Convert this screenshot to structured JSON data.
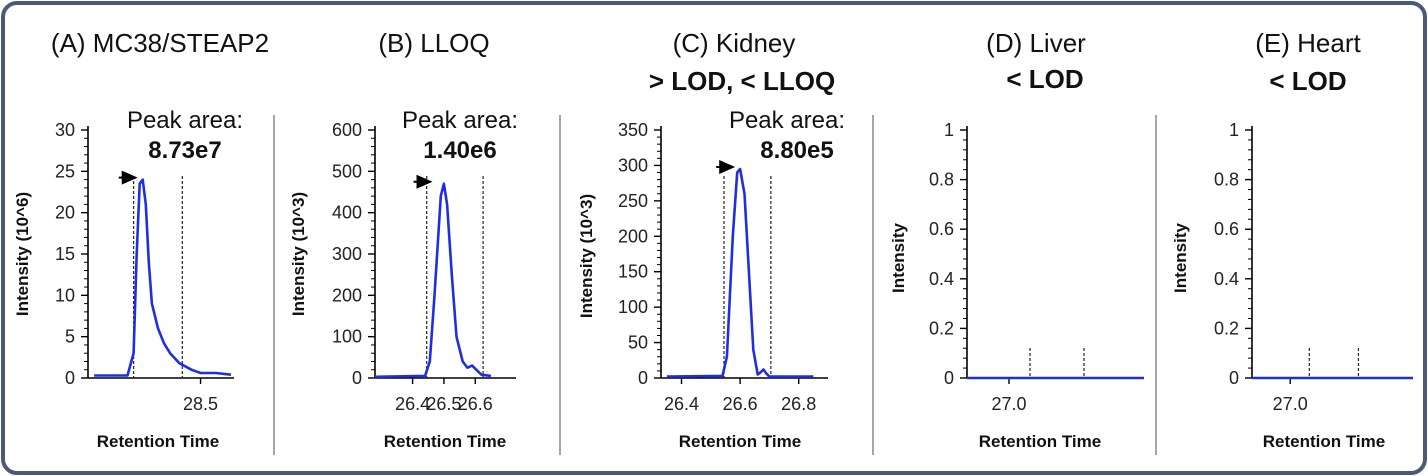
{
  "chart_data": [
    {
      "type": "line",
      "title": "(A) MC38/STEAP2",
      "subtitle": "",
      "annotation": {
        "label": "Peak area:",
        "value": "8.73e7"
      },
      "xlabel": "Retention Time",
      "ylabel": "Intensity (10^6)",
      "xlim": [
        28.13,
        28.61
      ],
      "ylim": [
        0,
        30
      ],
      "x_ticks": [
        {
          "v": 28.5,
          "label": "28.5"
        }
      ],
      "y_ticks": [
        0,
        5,
        10,
        15,
        20,
        25,
        30
      ],
      "integration_bounds": [
        28.28,
        28.44
      ],
      "peak_marker": {
        "x": 28.3,
        "y": 24
      },
      "color": "#1f2fe0",
      "series": [
        {
          "x": [
            28.15,
            28.26,
            28.28,
            28.29,
            28.3,
            28.31,
            28.32,
            28.33,
            28.34,
            28.36,
            28.38,
            28.4,
            28.43,
            28.47,
            28.5,
            28.55,
            28.6
          ],
          "y": [
            0.3,
            0.3,
            3,
            15,
            23.5,
            24,
            21,
            14,
            9,
            6,
            4.2,
            3,
            1.8,
            1,
            0.6,
            0.6,
            0.4
          ]
        }
      ]
    },
    {
      "type": "line",
      "title": "(B) LLOQ",
      "subtitle": "",
      "annotation": {
        "label": "Peak area:",
        "value": "1.40e6"
      },
      "xlabel": "Retention Time",
      "ylabel": "Intensity (10^3)",
      "xlim": [
        26.28,
        26.73
      ],
      "ylim": [
        0,
        600
      ],
      "x_ticks": [
        {
          "v": 26.4,
          "label": "26.4"
        },
        {
          "v": 26.5,
          "label": "26.5"
        },
        {
          "v": 26.6,
          "label": "26.6"
        }
      ],
      "y_ticks": [
        0,
        100,
        200,
        300,
        400,
        500,
        600
      ],
      "integration_bounds": [
        26.445,
        26.625
      ],
      "peak_marker": {
        "x": 26.47,
        "y": 470
      },
      "color": "#1f2fe0",
      "series": [
        {
          "x": [
            26.28,
            26.44,
            26.455,
            26.47,
            26.49,
            26.5,
            26.51,
            26.525,
            26.54,
            26.56,
            26.575,
            26.59,
            26.61,
            26.62,
            26.65
          ],
          "y": [
            3,
            5,
            40,
            200,
            440,
            470,
            420,
            250,
            100,
            40,
            25,
            30,
            15,
            8,
            5
          ]
        }
      ]
    },
    {
      "type": "line",
      "title": "(C) Kidney",
      "subtitle": "> LOD, < LLOQ",
      "annotation": {
        "label": "Peak area:",
        "value": "8.80e5"
      },
      "xlabel": "Retention Time",
      "ylabel": "Intensity (10^3)",
      "xlim": [
        26.33,
        26.9
      ],
      "ylim": [
        0,
        350
      ],
      "x_ticks": [
        {
          "v": 26.4,
          "label": "26.4"
        },
        {
          "v": 26.6,
          "label": "26.6"
        },
        {
          "v": 26.8,
          "label": "26.8"
        }
      ],
      "y_ticks": [
        0,
        50,
        100,
        150,
        200,
        250,
        300,
        350
      ],
      "integration_bounds": [
        26.545,
        26.705
      ],
      "peak_marker": {
        "x": 26.59,
        "y": 295
      },
      "color": "#1f2fe0",
      "series": [
        {
          "x": [
            26.35,
            26.54,
            26.555,
            26.575,
            26.59,
            26.6,
            26.615,
            26.63,
            26.645,
            26.66,
            26.67,
            26.68,
            26.69,
            26.7,
            26.72,
            26.85
          ],
          "y": [
            2,
            3,
            30,
            200,
            290,
            295,
            260,
            150,
            40,
            5,
            8,
            12,
            6,
            2,
            2,
            2
          ]
        }
      ]
    },
    {
      "type": "line",
      "title": "(D) Liver",
      "subtitle": "< LOD",
      "annotation": null,
      "xlabel": "Retention Time",
      "ylabel": "Intensity",
      "xlim": [
        26.86,
        27.45
      ],
      "ylim": [
        0,
        1
      ],
      "x_ticks": [
        {
          "v": 27.0,
          "label": "27.0"
        }
      ],
      "y_ticks": [
        0,
        0.2,
        0.4,
        0.6,
        0.8,
        1
      ],
      "integration_bounds": [
        27.07,
        27.25
      ],
      "peak_marker": null,
      "color": "#1f2fe0",
      "series": [
        {
          "x": [
            26.86,
            27.45
          ],
          "y": [
            0,
            0
          ]
        }
      ]
    },
    {
      "type": "line",
      "title": "(E) Heart",
      "subtitle": "< LOD",
      "annotation": null,
      "xlabel": "Retention Time",
      "ylabel": "Intensity",
      "xlim": [
        26.86,
        27.45
      ],
      "ylim": [
        0,
        1
      ],
      "x_ticks": [
        {
          "v": 27.0,
          "label": "27.0"
        }
      ],
      "y_ticks": [
        0,
        0.2,
        0.4,
        0.6,
        0.8,
        1
      ],
      "integration_bounds": [
        27.07,
        27.25
      ],
      "peak_marker": null,
      "color": "#1f2fe0",
      "series": [
        {
          "x": [
            26.86,
            27.45
          ],
          "y": [
            0,
            0
          ]
        }
      ]
    }
  ]
}
